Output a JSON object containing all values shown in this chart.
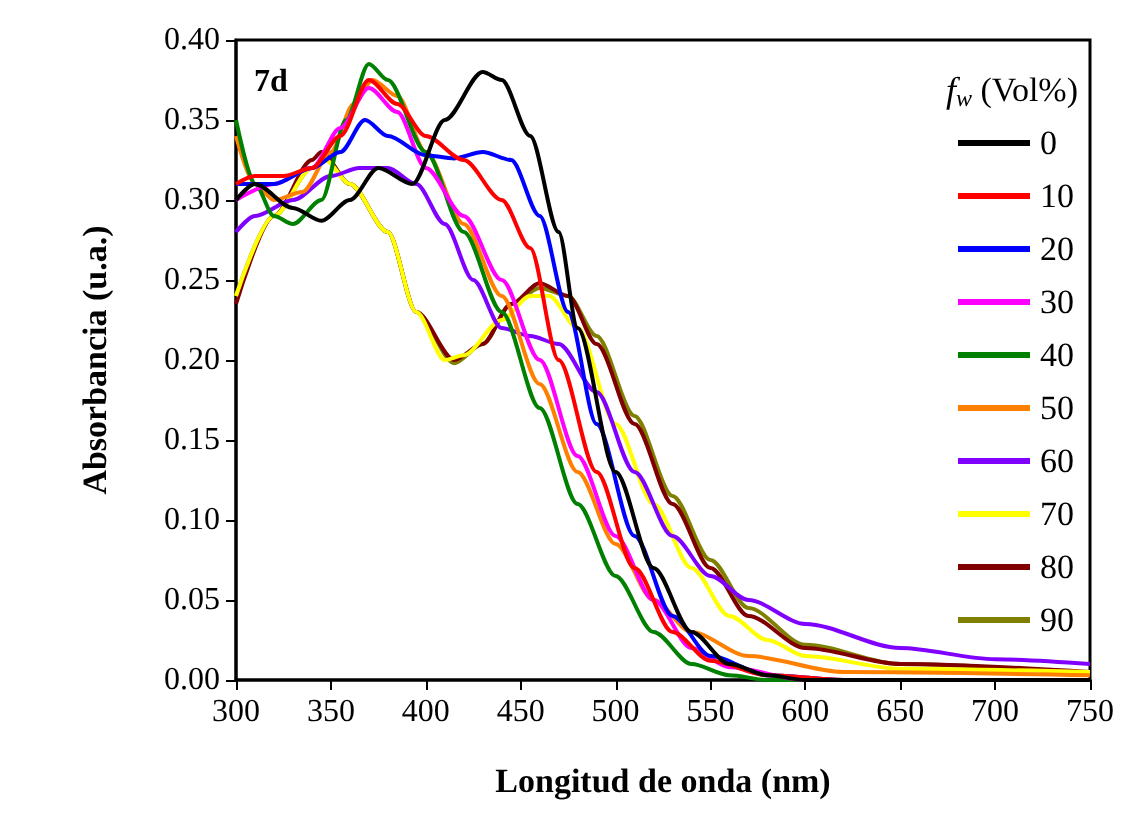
{
  "chart_data": {
    "type": "line",
    "xlabel": "Longitud de onda (nm)",
    "ylabel": "Absorbancia (u.a.)",
    "legend_title": "f$_{w}$ (Vol%)",
    "annotations": [
      "7d"
    ],
    "xlim": [
      300,
      750
    ],
    "xticks": [
      300,
      350,
      400,
      450,
      500,
      550,
      600,
      650,
      700,
      750
    ],
    "ylim": [
      0,
      0.4
    ],
    "yticks": [
      {
        "value": 0,
        "label": "0.00"
      },
      {
        "value": 0.05,
        "label": "0.05"
      },
      {
        "value": 0.1,
        "label": "0.10"
      },
      {
        "value": 0.15,
        "label": "0.15"
      },
      {
        "value": 0.2,
        "label": "0.20"
      },
      {
        "value": 0.25,
        "label": "0.25"
      },
      {
        "value": 0.3,
        "label": "0.30"
      },
      {
        "value": 0.35,
        "label": "0.35"
      },
      {
        "value": 0.4,
        "label": "0.40"
      }
    ],
    "grid": false,
    "legend": "right",
    "marker": "none",
    "line_style": "solid",
    "series": [
      {
        "name": "0",
        "color": "#000000",
        "x": [
          300,
          310,
          330,
          345,
          360,
          375,
          393,
          410,
          430,
          440,
          455,
          470,
          480,
          500,
          520,
          540,
          560,
          580,
          600,
          750
        ],
        "values": [
          0.3,
          0.31,
          0.295,
          0.287,
          0.3,
          0.32,
          0.31,
          0.35,
          0.38,
          0.375,
          0.34,
          0.28,
          0.22,
          0.13,
          0.07,
          0.03,
          0.01,
          0.003,
          0,
          0
        ]
      },
      {
        "name": "10",
        "color": "#ff0000",
        "x": [
          300,
          310,
          325,
          340,
          355,
          370,
          385,
          400,
          420,
          440,
          455,
          470,
          490,
          510,
          530,
          550,
          580,
          620,
          750
        ],
        "values": [
          0.31,
          0.315,
          0.315,
          0.32,
          0.34,
          0.375,
          0.36,
          0.34,
          0.325,
          0.3,
          0.27,
          0.2,
          0.13,
          0.07,
          0.03,
          0.012,
          0.003,
          0,
          0
        ]
      },
      {
        "name": "20",
        "color": "#0000ff",
        "x": [
          300,
          320,
          340,
          355,
          368,
          380,
          400,
          415,
          430,
          445,
          460,
          475,
          490,
          510,
          530,
          550,
          580,
          620,
          750
        ],
        "values": [
          0.31,
          0.31,
          0.32,
          0.33,
          0.35,
          0.34,
          0.328,
          0.326,
          0.33,
          0.325,
          0.29,
          0.23,
          0.16,
          0.09,
          0.04,
          0.015,
          0.003,
          0,
          0
        ]
      },
      {
        "name": "30",
        "color": "#ff00ff",
        "x": [
          300,
          320,
          340,
          355,
          370,
          385,
          400,
          420,
          440,
          460,
          480,
          500,
          520,
          540,
          560,
          600,
          750
        ],
        "values": [
          0.3,
          0.31,
          0.32,
          0.345,
          0.37,
          0.355,
          0.32,
          0.29,
          0.25,
          0.2,
          0.14,
          0.09,
          0.05,
          0.02,
          0.008,
          0,
          0
        ]
      },
      {
        "name": "40",
        "color": "#008000",
        "x": [
          300,
          310,
          320,
          330,
          345,
          358,
          370,
          380,
          400,
          420,
          440,
          460,
          480,
          500,
          520,
          540,
          560,
          580,
          750
        ],
        "values": [
          0.35,
          0.31,
          0.29,
          0.285,
          0.3,
          0.35,
          0.385,
          0.375,
          0.33,
          0.28,
          0.23,
          0.17,
          0.11,
          0.065,
          0.03,
          0.01,
          0.003,
          0,
          0
        ]
      },
      {
        "name": "50",
        "color": "#ff8000",
        "x": [
          300,
          310,
          320,
          335,
          350,
          362,
          372,
          385,
          400,
          420,
          440,
          460,
          480,
          500,
          520,
          540,
          570,
          620,
          750
        ],
        "values": [
          0.34,
          0.31,
          0.3,
          0.305,
          0.33,
          0.36,
          0.375,
          0.365,
          0.33,
          0.285,
          0.24,
          0.185,
          0.13,
          0.085,
          0.05,
          0.03,
          0.015,
          0.005,
          0.003
        ]
      },
      {
        "name": "60",
        "color": "#8000ff",
        "x": [
          300,
          310,
          330,
          350,
          365,
          380,
          395,
          410,
          425,
          440,
          455,
          470,
          490,
          510,
          530,
          550,
          570,
          600,
          650,
          700,
          750
        ],
        "values": [
          0.28,
          0.29,
          0.3,
          0.315,
          0.32,
          0.32,
          0.31,
          0.285,
          0.25,
          0.22,
          0.215,
          0.21,
          0.18,
          0.13,
          0.09,
          0.065,
          0.05,
          0.035,
          0.02,
          0.013,
          0.01
        ]
      },
      {
        "name": "70",
        "color": "#ffff00",
        "x": [
          300,
          320,
          340,
          347,
          360,
          380,
          395,
          410,
          420,
          440,
          455,
          465,
          480,
          500,
          520,
          540,
          560,
          580,
          600,
          650,
          750
        ],
        "values": [
          0.24,
          0.29,
          0.32,
          0.325,
          0.31,
          0.28,
          0.23,
          0.2,
          0.203,
          0.225,
          0.24,
          0.24,
          0.22,
          0.16,
          0.11,
          0.07,
          0.04,
          0.025,
          0.015,
          0.007,
          0.005
        ]
      },
      {
        "name": "80",
        "color": "#800000",
        "x": [
          300,
          320,
          340,
          345,
          360,
          380,
          395,
          415,
          430,
          445,
          460,
          475,
          490,
          510,
          530,
          550,
          570,
          600,
          650,
          750
        ],
        "values": [
          0.235,
          0.29,
          0.325,
          0.33,
          0.31,
          0.28,
          0.23,
          0.2,
          0.21,
          0.235,
          0.248,
          0.24,
          0.21,
          0.16,
          0.11,
          0.07,
          0.04,
          0.02,
          0.01,
          0.005
        ]
      },
      {
        "name": "90",
        "color": "#808000",
        "x": [
          300,
          320,
          340,
          348,
          360,
          380,
          395,
          415,
          430,
          445,
          460,
          475,
          490,
          510,
          530,
          550,
          570,
          600,
          650,
          750
        ],
        "values": [
          0.24,
          0.29,
          0.32,
          0.325,
          0.31,
          0.28,
          0.23,
          0.198,
          0.21,
          0.235,
          0.245,
          0.24,
          0.215,
          0.165,
          0.115,
          0.075,
          0.045,
          0.022,
          0.01,
          0.004
        ]
      }
    ]
  }
}
